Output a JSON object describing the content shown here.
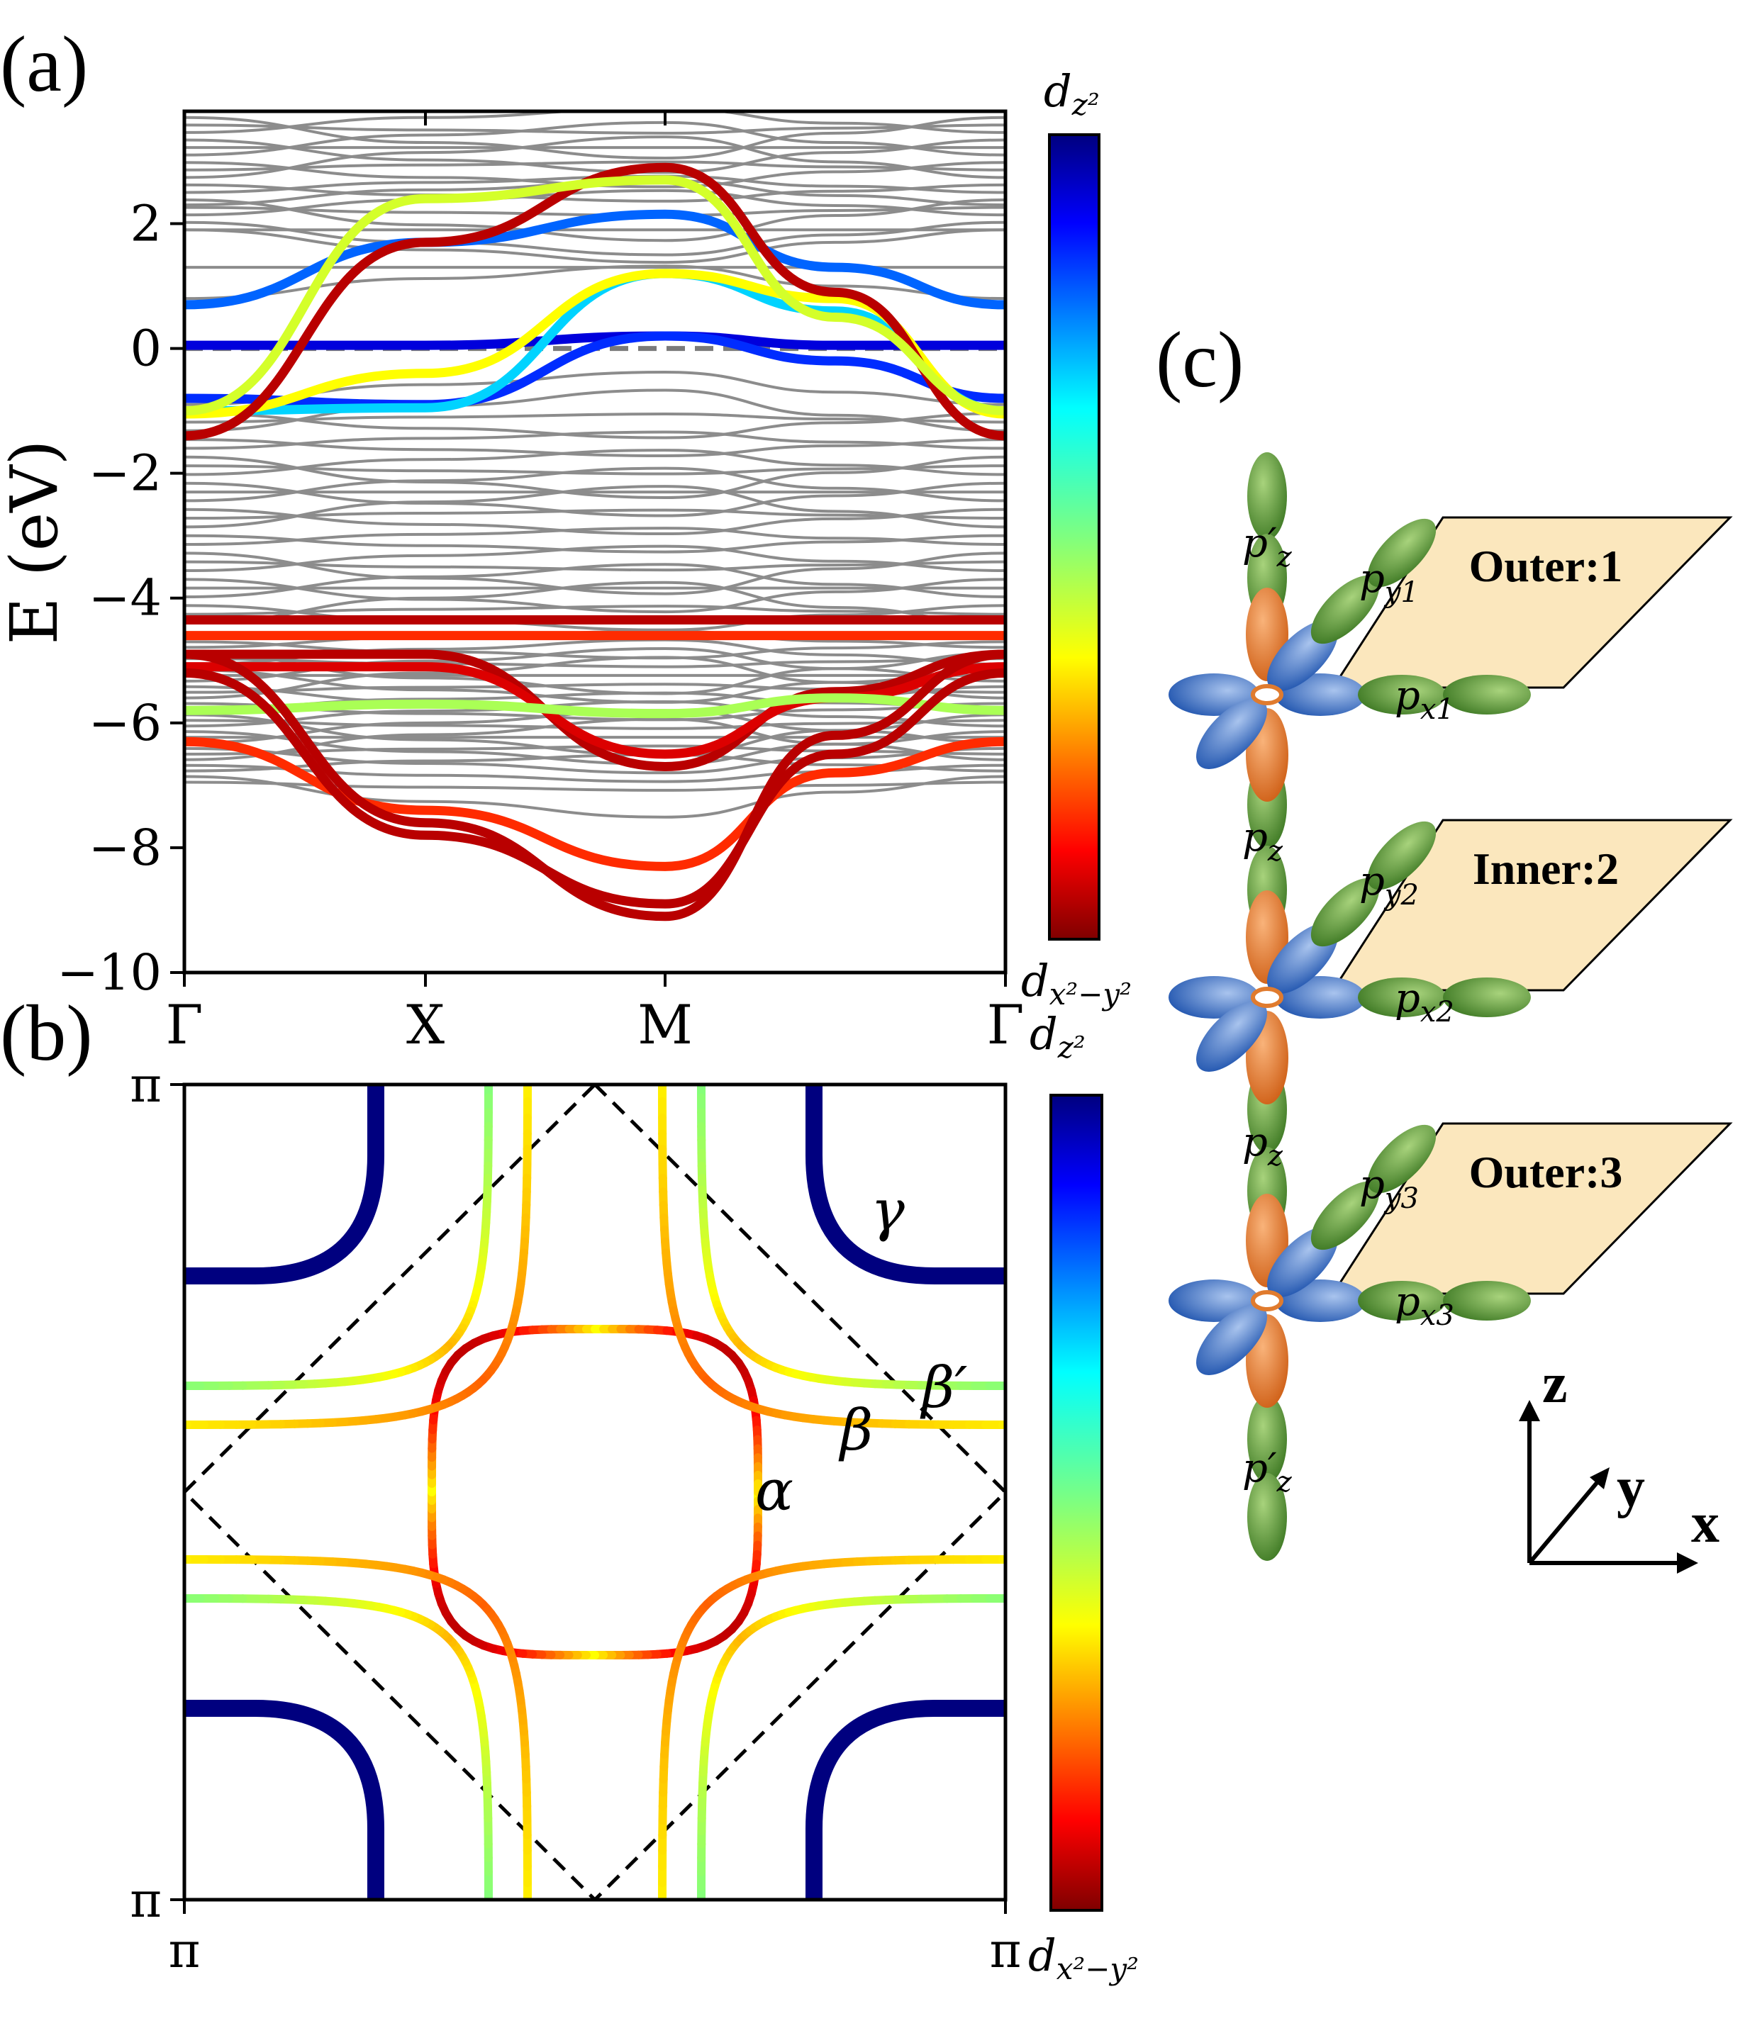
{
  "panels": {
    "a": {
      "label": "(a)"
    },
    "b": {
      "label": "(b)"
    },
    "c": {
      "label": "(c)"
    }
  },
  "colorbar": {
    "top_label": "d",
    "top_sub": "z²",
    "bottom_label": "d",
    "bottom_sub": "x²−y²",
    "top_color": "#00007f",
    "bottom_color": "#7f0000"
  },
  "chart_data": [
    {
      "type": "line",
      "title": "",
      "ylabel": "E (eV)",
      "xlabel": "",
      "x_ticks": [
        "Γ",
        "X",
        "M",
        "Γ"
      ],
      "y_ticks": [
        "−10",
        "−8",
        "−6",
        "−4",
        "−2",
        "0",
        "2"
      ],
      "ylim": [
        -10,
        3.8
      ],
      "fermi_level": 0,
      "background_band_color": "#888888",
      "highlighted_bands": [
        {
          "values": [
            0.7,
            1.7,
            2.15,
            1.3,
            0.7
          ],
          "weight": 0.8
        },
        {
          "values": [
            0.05,
            0.05,
            0.2,
            0.05,
            0.05
          ],
          "weight": 0.92
        },
        {
          "values": [
            -0.8,
            -0.9,
            0.2,
            -0.2,
            -0.8
          ],
          "weight": 0.85
        },
        {
          "values": [
            -1.0,
            -0.95,
            1.2,
            0.6,
            -1.0
          ],
          "weight": 0.7
        },
        {
          "values": [
            -1.05,
            -0.4,
            1.2,
            0.8,
            -1.05
          ],
          "weight": 0.35
        },
        {
          "values": [
            -1.4,
            1.7,
            2.9,
            0.9,
            -1.4
          ],
          "weight": 0.05
        },
        {
          "values": [
            -1.0,
            2.4,
            2.7,
            0.5,
            -1.0
          ],
          "weight": 0.4
        },
        {
          "values": [
            -4.35,
            -4.35,
            -4.35,
            -4.35,
            -4.35
          ],
          "weight": 0.05
        },
        {
          "values": [
            -4.6,
            -4.6,
            -4.6,
            -4.6,
            -4.6
          ],
          "weight": 0.15
        },
        {
          "values": [
            -4.9,
            -4.9,
            -6.7,
            -5.5,
            -4.9
          ],
          "weight": 0.05
        },
        {
          "values": [
            -5.1,
            -5.1,
            -6.5,
            -5.6,
            -5.1
          ],
          "weight": 0.08
        },
        {
          "values": [
            -5.8,
            -5.7,
            -5.85,
            -5.6,
            -5.8
          ],
          "weight": 0.45
        },
        {
          "values": [
            -6.3,
            -7.4,
            -8.3,
            -6.8,
            -6.3
          ],
          "weight": 0.15
        },
        {
          "values": [
            -5.2,
            -7.8,
            -8.9,
            -6.5,
            -5.2
          ],
          "weight": 0.05
        },
        {
          "values": [
            -4.9,
            -7.6,
            -9.1,
            -6.2,
            -4.9
          ],
          "weight": 0.05
        }
      ]
    },
    {
      "type": "line",
      "title": "",
      "x_ticks": [
        "π",
        "π"
      ],
      "y_ticks": [
        "π",
        "π"
      ],
      "pockets": [
        {
          "label": "α",
          "weight": "0.1–0.4"
        },
        {
          "label": "β",
          "weight": "0.2–0.45"
        },
        {
          "label": "β′",
          "weight": "0.6"
        },
        {
          "label": "γ",
          "weight": "1.0"
        }
      ]
    }
  ],
  "diagram": {
    "layers": [
      {
        "name": "Outer:1",
        "py": "p",
        "py_sub": "y1",
        "px": "p",
        "px_sub": "x1"
      },
      {
        "name": "Inner:2",
        "py": "p",
        "py_sub": "y2",
        "px": "p",
        "px_sub": "x2"
      },
      {
        "name": "Outer:3",
        "py": "p",
        "py_sub": "y3",
        "px": "p",
        "px_sub": "x3"
      }
    ],
    "pz_prime": "p′",
    "pz_prime_sub": "z",
    "pz": "p",
    "pz_sub": "z",
    "axes": {
      "z": "z",
      "y": "y",
      "x": "x"
    },
    "colors": {
      "green": "#5f9a3a",
      "blue": "#3a6fc4",
      "orange": "#e07b2e",
      "plane": "#fbe7bd"
    }
  }
}
